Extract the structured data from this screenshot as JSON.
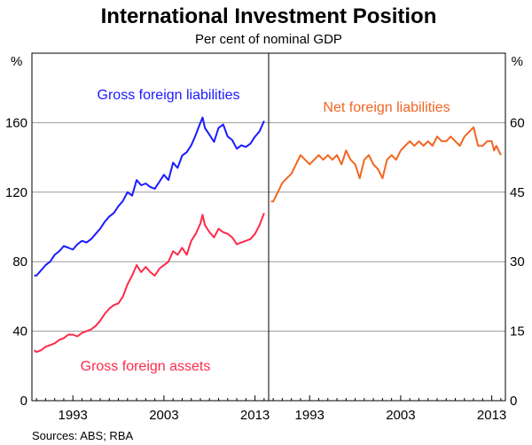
{
  "chart_data": [
    {
      "type": "line",
      "panel": "left",
      "title": "International Investment Position",
      "subtitle": "Per cent of nominal GDP",
      "ylabel": "%",
      "ylim": [
        0,
        200
      ],
      "yticks": [
        0,
        40,
        80,
        120,
        160
      ],
      "xlim": [
        1988.5,
        2014.5
      ],
      "xticks": [
        1993,
        2003,
        2013
      ],
      "grid": true,
      "series": [
        {
          "name": "Gross foreign liabilities",
          "color": "#1a1aff",
          "x": [
            1988.75,
            1989,
            1989.5,
            1990,
            1990.5,
            1991,
            1991.5,
            1992,
            1992.5,
            1993,
            1993.5,
            1994,
            1994.5,
            1995,
            1995.5,
            1996,
            1996.5,
            1997,
            1997.5,
            1998,
            1998.5,
            1999,
            1999.5,
            2000,
            2000.5,
            2001,
            2001.5,
            2002,
            2002.5,
            2003,
            2003.5,
            2004,
            2004.5,
            2005,
            2005.5,
            2006,
            2006.5,
            2007,
            2007.25,
            2007.5,
            2008,
            2008.5,
            2009,
            2009.5,
            2010,
            2010.5,
            2011,
            2011.5,
            2012,
            2012.5,
            2013,
            2013.5,
            2014
          ],
          "y": [
            72,
            72,
            75,
            78,
            80,
            84,
            86,
            89,
            88,
            87,
            90,
            92,
            91,
            93,
            96,
            99,
            103,
            106,
            108,
            112,
            115,
            120,
            118,
            127,
            124,
            125,
            123,
            122,
            126,
            130,
            127,
            137,
            134,
            141,
            143,
            147,
            153,
            160,
            163,
            157,
            153,
            149,
            157,
            159,
            152,
            150,
            145,
            147,
            146,
            148,
            152,
            155,
            161
          ]
        },
        {
          "name": "Gross foreign assets",
          "color": "#ff2a4a",
          "x": [
            1988.75,
            1989,
            1989.5,
            1990,
            1990.5,
            1991,
            1991.5,
            1992,
            1992.5,
            1993,
            1993.5,
            1994,
            1994.5,
            1995,
            1995.5,
            1996,
            1996.5,
            1997,
            1997.5,
            1998,
            1998.5,
            1999,
            1999.5,
            2000,
            2000.5,
            2001,
            2001.5,
            2002,
            2002.5,
            2003,
            2003.5,
            2004,
            2004.5,
            2005,
            2005.5,
            2006,
            2006.5,
            2007,
            2007.25,
            2007.5,
            2008,
            2008.5,
            2009,
            2009.5,
            2010,
            2010.5,
            2011,
            2011.5,
            2012,
            2012.5,
            2013,
            2013.5,
            2014
          ],
          "y": [
            29,
            28,
            29,
            31,
            32,
            33,
            35,
            36,
            38,
            38,
            37,
            39,
            40,
            41,
            43,
            46,
            50,
            53,
            55,
            56,
            60,
            67,
            72,
            78,
            74,
            77,
            74,
            72,
            76,
            78,
            80,
            86,
            84,
            88,
            84,
            92,
            96,
            102,
            107,
            101,
            97,
            94,
            99,
            97,
            96,
            94,
            90,
            91,
            92,
            93,
            96,
            101,
            108
          ]
        }
      ]
    },
    {
      "type": "line",
      "panel": "right",
      "ylabel": "%",
      "ylim": [
        0,
        75
      ],
      "yticks": [
        0,
        15,
        30,
        45,
        60
      ],
      "xlim": [
        1988.5,
        2014.5
      ],
      "xticks": [
        1993,
        2003,
        2013
      ],
      "grid": true,
      "series": [
        {
          "name": "Net foreign liabilities",
          "color": "#f26522",
          "x": [
            1988.75,
            1989,
            1989.5,
            1990,
            1990.5,
            1991,
            1991.5,
            1992,
            1992.5,
            1993,
            1993.5,
            1994,
            1994.5,
            1995,
            1995.5,
            1996,
            1996.5,
            1997,
            1997.5,
            1998,
            1998.5,
            1999,
            1999.5,
            2000,
            2000.5,
            2001,
            2001.5,
            2002,
            2002.5,
            2003,
            2003.5,
            2004,
            2004.5,
            2005,
            2005.5,
            2006,
            2006.5,
            2007,
            2007.5,
            2008,
            2008.5,
            2009,
            2009.5,
            2010,
            2010.5,
            2011,
            2011.5,
            2012,
            2012.5,
            2013,
            2013.25,
            2013.5,
            2014
          ],
          "y": [
            43,
            43,
            45,
            47,
            48,
            49,
            51,
            53,
            52,
            51,
            52,
            53,
            52,
            53,
            52,
            53,
            51,
            54,
            52,
            51,
            48,
            52,
            53,
            51,
            50,
            48,
            52,
            53,
            52,
            54,
            55,
            56,
            55,
            56,
            55,
            56,
            55,
            57,
            56,
            56,
            57,
            56,
            55,
            57,
            58,
            59,
            55,
            55,
            56,
            56,
            54,
            55,
            53
          ]
        }
      ]
    }
  ],
  "x_tick_labels": [
    "1993",
    "2003",
    "2013"
  ],
  "left_ytick_labels": [
    "0",
    "40",
    "80",
    "120",
    "160"
  ],
  "right_ytick_labels": [
    "0",
    "15",
    "30",
    "45",
    "60"
  ],
  "left_unit": "%",
  "right_unit": "%",
  "source": "Sources: ABS; RBA"
}
